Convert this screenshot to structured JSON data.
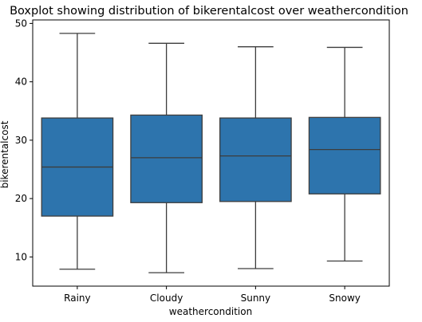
{
  "chart_data": {
    "type": "boxplot",
    "title": "Boxplot showing distribution of bikerentalcost over weathercondition",
    "xlabel": "weathercondition",
    "ylabel": "bikerentalcost",
    "categories": [
      "Rainy",
      "Cloudy",
      "Sunny",
      "Snowy"
    ],
    "boxes": [
      {
        "category": "Rainy",
        "whisker_low": 7.9,
        "q1": 17.0,
        "median": 25.4,
        "q3": 33.8,
        "whisker_high": 48.3
      },
      {
        "category": "Cloudy",
        "whisker_low": 7.3,
        "q1": 19.3,
        "median": 27.0,
        "q3": 34.3,
        "whisker_high": 46.6
      },
      {
        "category": "Sunny",
        "whisker_low": 8.0,
        "q1": 19.5,
        "median": 27.3,
        "q3": 33.8,
        "whisker_high": 46.0
      },
      {
        "category": "Snowy",
        "whisker_low": 9.3,
        "q1": 20.8,
        "median": 28.4,
        "q3": 33.9,
        "whisker_high": 45.9
      }
    ],
    "ylim": [
      5.0,
      50.6
    ],
    "yticks": [
      10,
      20,
      30,
      40,
      50
    ],
    "grid": false,
    "colors": {
      "box_fill": "#2d74ad",
      "line": "#3d3d3d",
      "axis": "#000000"
    }
  }
}
